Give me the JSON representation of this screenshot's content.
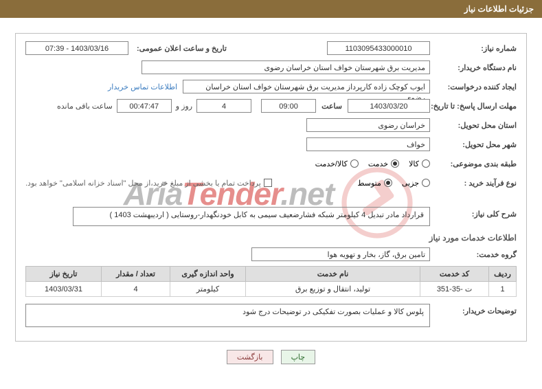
{
  "header": {
    "title": "جزئیات اطلاعات نیاز"
  },
  "fields": {
    "need_no_label": "شماره نیاز:",
    "need_no": "1103095433000010",
    "announce_label": "تاریخ و ساعت اعلان عمومی:",
    "announce_value": "1403/03/16 - 07:39",
    "buyer_org_label": "نام دستگاه خریدار:",
    "buyer_org": "مدیریت برق شهرستان خواف استان خراسان رضوی",
    "requester_label": "ایجاد کننده درخواست:",
    "requester": "ایوب کوچک زاده کارپرداز مدیریت برق شهرستان خواف استان خراسان رضوی",
    "contact_link": "اطلاعات تماس خریدار",
    "deadline_label": "مهلت ارسال پاسخ: تا تاریخ:",
    "deadline_date": "1403/03/20",
    "hour_label": "ساعت",
    "deadline_hour": "09:00",
    "days_remaining": "4",
    "days_suffix": "روز و",
    "time_remaining": "00:47:47",
    "remaining_suffix": "ساعت باقی مانده",
    "province_label": "استان محل تحویل:",
    "province": "خراسان رضوی",
    "city_label": "شهر محل تحویل:",
    "city": "خواف",
    "category_label": "طبقه بندی موضوعی:",
    "cat_goods": "کالا",
    "cat_service": "خدمت",
    "cat_goods_service": "کالا/خدمت",
    "process_label": "نوع فرآیند خرید :",
    "proc_small": "جزیی",
    "proc_medium": "متوسط",
    "payment_note": "پرداخت تمام یا بخشی از مبلغ خرید،از محل \"اسناد خزانه اسلامی\" خواهد بود.",
    "summary_label": "شرح کلی نیاز:",
    "summary": "قرارداد مادر تبدیل 4 کیلومتر شبکه فشارضعیف سیمی به کابل خودنگهدار-روستایی ( اردیبهشت 1403 )",
    "services_heading": "اطلاعات خدمات مورد نیاز",
    "service_group_label": "گروه خدمت:",
    "service_group": "تامین برق، گاز، بخار و تهویه هوا",
    "buyer_notes_label": "توضیحات خریدار:",
    "buyer_notes": "پلوس کالا و عملیات بصورت تفکیکی در توضیحات درج شود"
  },
  "table": {
    "headers": {
      "row": "ردیف",
      "code": "کد خدمت",
      "name": "نام خدمت",
      "unit": "واحد اندازه گیری",
      "qty": "تعداد / مقدار",
      "need_date": "تاریخ نیاز"
    },
    "rows": [
      {
        "row": "1",
        "code": "ت -35-351",
        "name": "تولید، انتقال و توزیع برق",
        "unit": "کیلومتر",
        "qty": "4",
        "need_date": "1403/03/31"
      }
    ]
  },
  "buttons": {
    "print": "چاپ",
    "back": "بازگشت"
  },
  "watermark": {
    "text_a": "Aria",
    "text_b": "Tender",
    "text_c": ".net"
  },
  "colors": {
    "header_bg": "#8a6d3b",
    "link": "#3b7cbf",
    "th_bg": "#e0e0e0",
    "border": "#c0c0c0"
  }
}
